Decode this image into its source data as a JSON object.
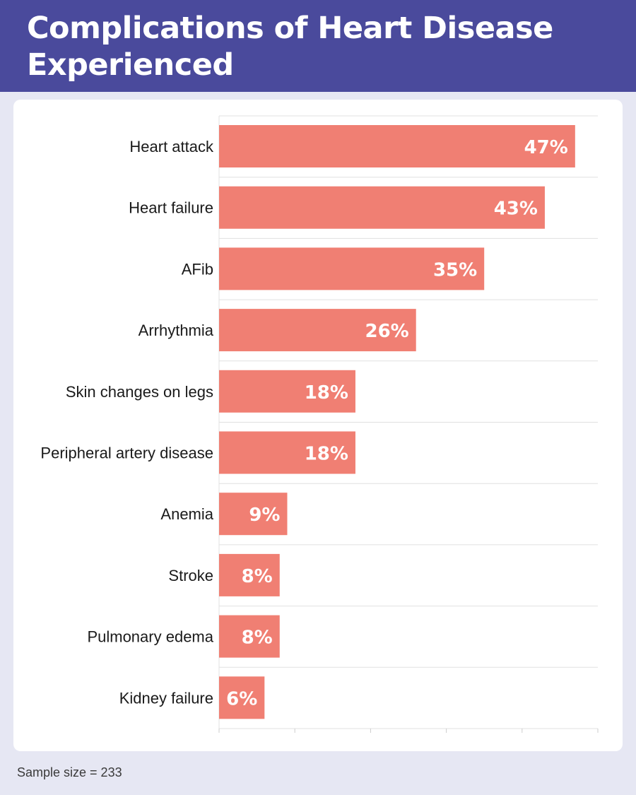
{
  "header": {
    "title": "Complications of Heart Disease Experienced"
  },
  "footer": {
    "note": "Sample size = 233"
  },
  "colors": {
    "header_bg": "#4a4a9c",
    "page_bg": "#e6e7f3",
    "bar": "#f07f73",
    "bar_label": "#ffffff",
    "grid": "#e0e0e0"
  },
  "chart_data": {
    "type": "bar",
    "orientation": "horizontal",
    "title": "Complications of Heart Disease Experienced",
    "categories": [
      "Heart attack",
      "Heart failure",
      "AFib",
      "Arrhythmia",
      "Skin changes on legs",
      "Peripheral artery disease",
      "Anemia",
      "Stroke",
      "Pulmonary edema",
      "Kidney failure"
    ],
    "values": [
      47,
      43,
      35,
      26,
      18,
      18,
      9,
      8,
      8,
      6
    ],
    "value_labels": [
      "47%",
      "43%",
      "35%",
      "26%",
      "18%",
      "18%",
      "9%",
      "8%",
      "8%",
      "6%"
    ],
    "xlim": [
      0,
      50
    ],
    "grid": true,
    "legend": "none"
  }
}
